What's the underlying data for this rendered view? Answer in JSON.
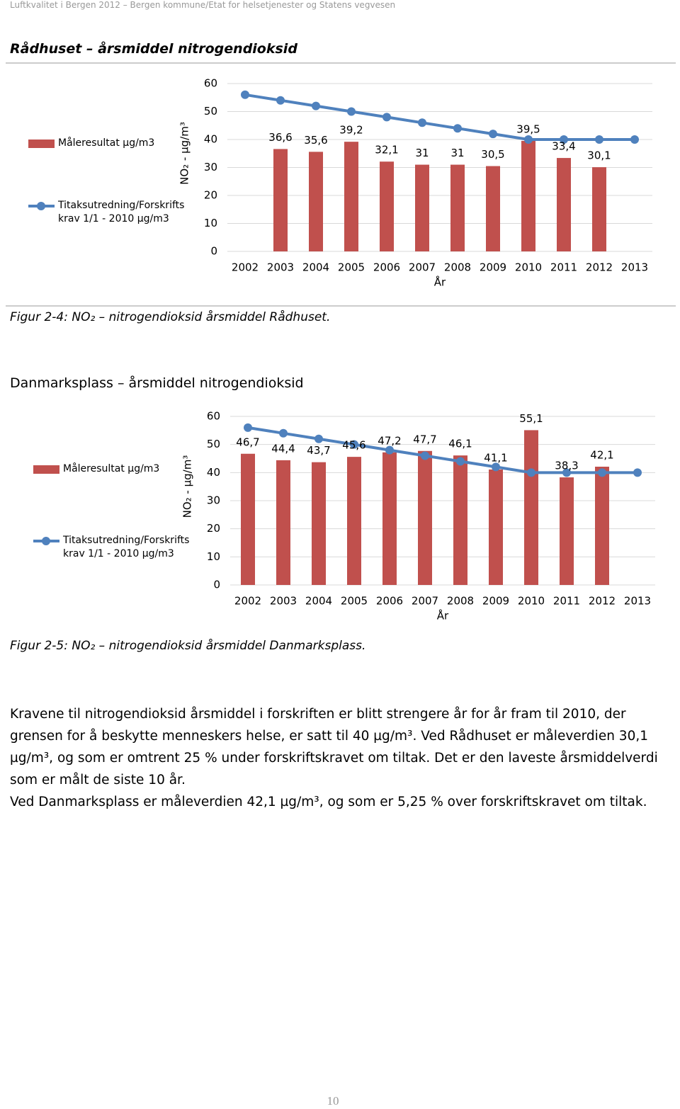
{
  "header": "Luftkvalitet i Bergen 2012 – Bergen kommune/Etat for helsetjenester og Statens vegvesen",
  "chart_data": [
    {
      "type": "bar",
      "title": "Rådhuset – årsmiddel nitrogendioksid",
      "caption": "Figur 2-4: NO₂ – nitrogendioksid årsmiddel Rådhuset.",
      "y_label": "NO₂ - µg/m³",
      "x_label": "År",
      "categories": [
        "2002",
        "2003",
        "2004",
        "2005",
        "2006",
        "2007",
        "2008",
        "2009",
        "2010",
        "2011",
        "2012",
        "2013"
      ],
      "ylim": [
        0,
        60
      ],
      "yticks": [
        0,
        10,
        20,
        30,
        40,
        50,
        60
      ],
      "grid": true,
      "legend": "left",
      "series": [
        {
          "name": "Måleresultat µg/m3",
          "type": "bar",
          "color": "#c0504d",
          "values": [
            null,
            36.6,
            35.6,
            39.2,
            32.1,
            31,
            31,
            30.5,
            39.5,
            33.4,
            30.1,
            null
          ],
          "value_labels": [
            null,
            "36,6",
            "35,6",
            "39,2",
            "32,1",
            "31",
            "31",
            "30,5",
            "39,5",
            "33,4",
            "30,1",
            null
          ]
        },
        {
          "name": "Titaksutredning/Forskrifts krav 1/1 - 2010 µg/m3",
          "type": "line",
          "color": "#4f81bd",
          "values": [
            56,
            54,
            52,
            50,
            48,
            46,
            44,
            42,
            40,
            40,
            40,
            40
          ]
        }
      ]
    },
    {
      "type": "bar",
      "title": "Danmarksplass – årsmiddel nitrogendioksid",
      "caption": "Figur 2-5: NO₂ – nitrogendioksid årsmiddel Danmarksplass.",
      "y_label": "NO₂ - µg/m³",
      "x_label": "År",
      "categories": [
        "2002",
        "2003",
        "2004",
        "2005",
        "2006",
        "2007",
        "2008",
        "2009",
        "2010",
        "2011",
        "2012",
        "2013"
      ],
      "ylim": [
        0,
        60
      ],
      "yticks": [
        0,
        10,
        20,
        30,
        40,
        50,
        60
      ],
      "grid": true,
      "legend": "left",
      "series": [
        {
          "name": "Måleresultat µg/m3",
          "type": "bar",
          "color": "#c0504d",
          "values": [
            46.7,
            44.4,
            43.7,
            45.6,
            47.2,
            47.7,
            46.1,
            41.1,
            55.1,
            38.3,
            42.1,
            null
          ],
          "value_labels": [
            "46,7",
            "44,4",
            "43,7",
            "45,6",
            "47,2",
            "47,7",
            "46,1",
            "41,1",
            "55,1",
            "38,3",
            "42,1",
            null
          ]
        },
        {
          "name": "Titaksutredning/Forskrifts krav 1/1 - 2010 µg/m3",
          "type": "line",
          "color": "#4f81bd",
          "values": [
            56,
            54,
            52,
            50,
            48,
            46,
            44,
            42,
            40,
            40,
            40,
            40
          ]
        }
      ]
    }
  ],
  "paragraphs": [
    "Kravene til nitrogendioksid årsmiddel i forskriften er blitt strengere år for år fram til 2010, der grensen for å beskytte menneskers helse, er satt til 40 µg/m³. Ved Rådhuset er måleverdien 30,1 µg/m³, og som er omtrent 25 % under forskriftskravet om tiltak. Det er den laveste årsmiddelverdi som er målt de siste 10 år.",
    "Ved Danmarksplass er måleverdien 42,1 µg/m³, og som er 5,25 % over forskriftskravet om tiltak."
  ],
  "page_number": "10"
}
